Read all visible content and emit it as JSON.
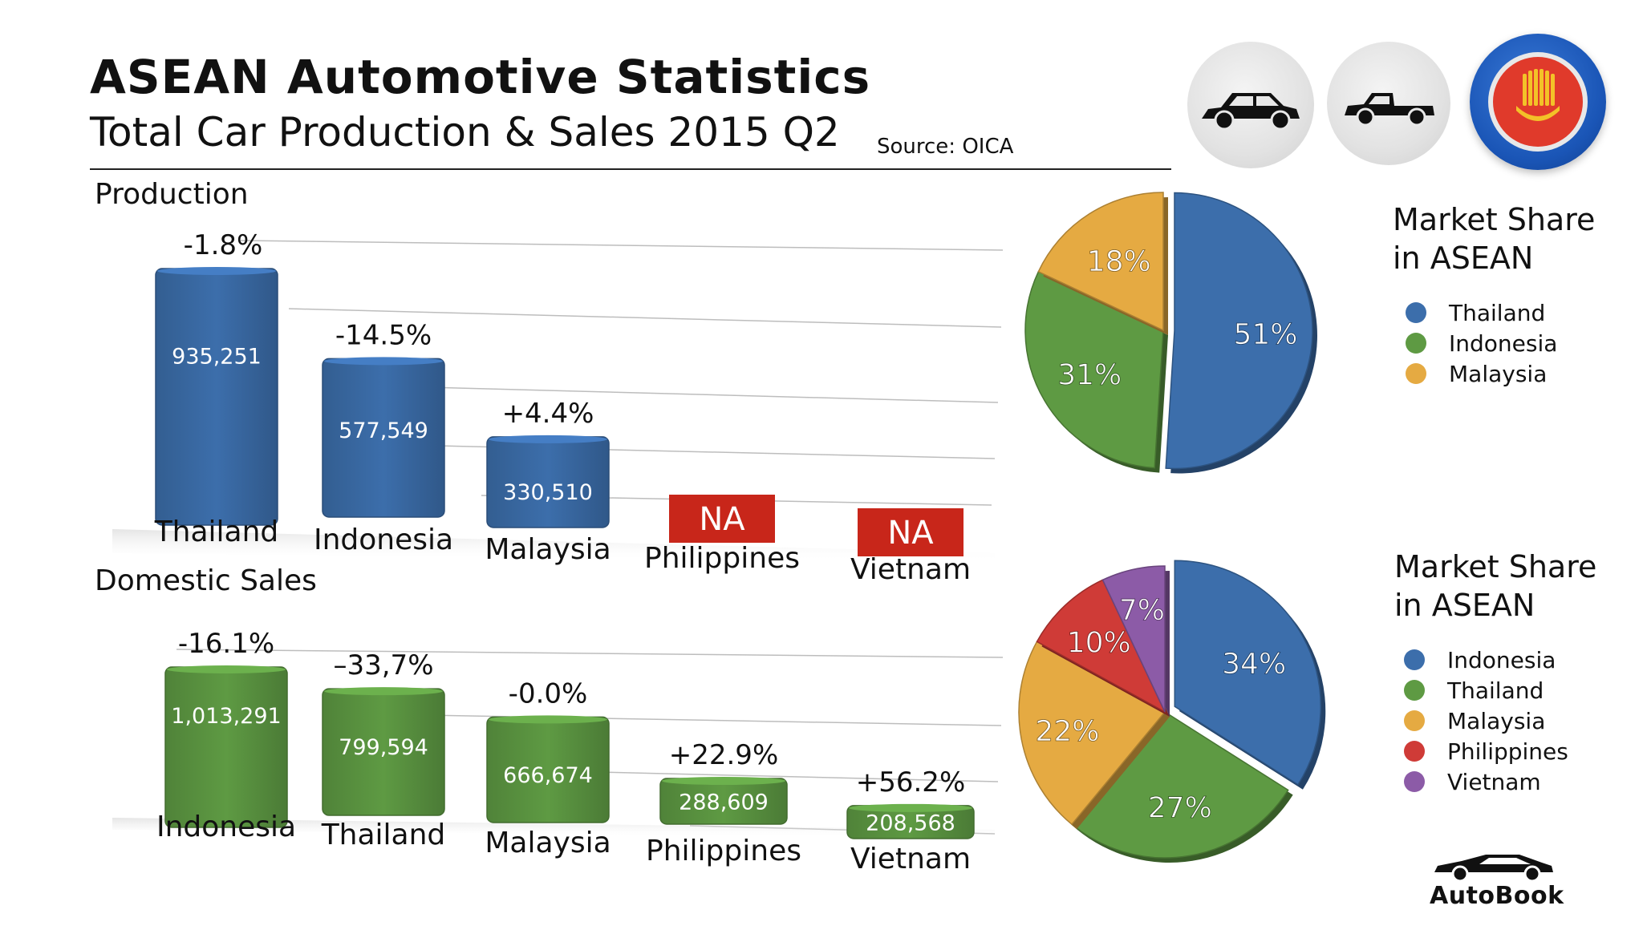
{
  "title": "ASEAN Automotive Statistics",
  "subtitle": "Total Car Production & Sales 2015 Q2",
  "source": "Source:  OICA",
  "production_label": "Production",
  "sales_label": "Domestic Sales",
  "icons": [
    "car-icon",
    "pickup-truck-icon",
    "asean-emblem-icon"
  ],
  "brand": "AutoBook",
  "colors": {
    "blue": "#3c6eab",
    "green": "#5e9a43",
    "orange": "#e5aa42",
    "red": "#cf3b37",
    "purple": "#8c5ba7",
    "na_red": "#c8261a"
  },
  "chart_data": [
    {
      "type": "bar",
      "title": "Production",
      "categories": [
        "Thailand",
        "Indonesia",
        "Malaysia",
        "Philippines",
        "Vietnam"
      ],
      "values": [
        935251,
        577549,
        330510,
        null,
        null
      ],
      "value_labels": [
        "935,251",
        "577,549",
        "330,510",
        "NA",
        "NA"
      ],
      "change_labels": [
        "-1.8%",
        "-14.5%",
        "+4.4%",
        "",
        ""
      ]
    },
    {
      "type": "bar",
      "title": "Domestic Sales",
      "categories": [
        "Indonesia",
        "Thailand",
        "Malaysia",
        "Philippines",
        "Vietnam"
      ],
      "values": [
        1013291,
        799594,
        666674,
        288609,
        208568
      ],
      "value_labels": [
        "1,013,291",
        "799,594",
        "666,674",
        "288,609",
        "208,568"
      ],
      "change_labels": [
        "-16.1%",
        "–33,7%",
        "-0.0%",
        "+22.9%",
        "+56.2%"
      ]
    },
    {
      "type": "pie",
      "title": "Market Share in ASEAN",
      "title_lines": [
        "Market Share",
        "in ASEAN"
      ],
      "labels": [
        "Thailand",
        "Indonesia",
        "Malaysia"
      ],
      "values": [
        51,
        31,
        18
      ],
      "value_labels": [
        "51%",
        "31%",
        "18%"
      ]
    },
    {
      "type": "pie",
      "title": "Market Share in ASEAN",
      "title_lines": [
        "Market Share",
        "in ASEAN"
      ],
      "labels": [
        "Indonesia",
        "Thailand",
        "Malaysia",
        "Philippines",
        "Vietnam"
      ],
      "values": [
        34,
        27,
        22,
        10,
        7
      ],
      "value_labels": [
        "34%",
        "27%",
        "22%",
        "10%",
        "7%"
      ]
    }
  ]
}
